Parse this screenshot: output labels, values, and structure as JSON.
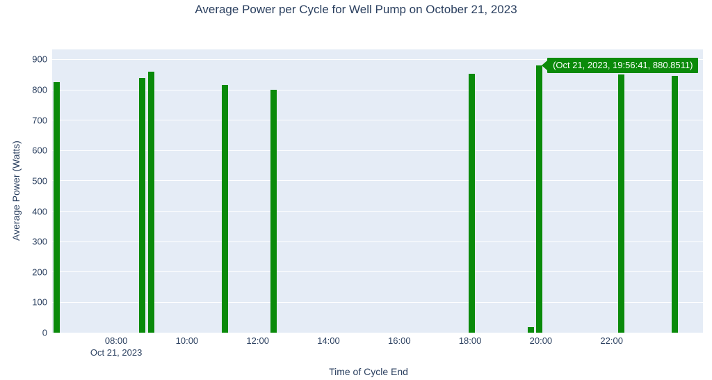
{
  "chart_data": {
    "type": "bar",
    "title": "Average Power per Cycle for Well Pump on October 21, 2023",
    "xlabel": "Time of Cycle End",
    "ylabel": "Average Power (Watts)",
    "x_secondary_label": "Oct 21, 2023",
    "legend": "none",
    "grid": "horizontal-only",
    "x_range_hours": [
      6.19,
      24.58
    ],
    "x_ticks": [
      {
        "hour": 8,
        "label": "08:00"
      },
      {
        "hour": 10,
        "label": "10:00"
      },
      {
        "hour": 12,
        "label": "12:00"
      },
      {
        "hour": 14,
        "label": "14:00"
      },
      {
        "hour": 16,
        "label": "16:00"
      },
      {
        "hour": 18,
        "label": "18:00"
      },
      {
        "hour": 20,
        "label": "20:00"
      },
      {
        "hour": 22,
        "label": "22:00"
      }
    ],
    "ylim": [
      0,
      933
    ],
    "y_ticks": [
      0,
      100,
      200,
      300,
      400,
      500,
      600,
      700,
      800,
      900
    ],
    "series": [
      {
        "name": "Average Power per Cycle",
        "points": [
          {
            "time": "06:19",
            "hour": 6.32,
            "watts": 826
          },
          {
            "time": "08:44",
            "hour": 8.737,
            "watts": 840
          },
          {
            "time": "09:00",
            "hour": 8.992,
            "watts": 860
          },
          {
            "time": "11:04",
            "hour": 11.065,
            "watts": 817
          },
          {
            "time": "12:26",
            "hour": 12.438,
            "watts": 799
          },
          {
            "time": "18:03",
            "hour": 18.05,
            "watts": 853
          },
          {
            "time": "19:44",
            "hour": 19.725,
            "watts": 18
          },
          {
            "time": "19:56:41",
            "hour": 19.9447,
            "watts": 880.8511
          },
          {
            "time": "22:17",
            "hour": 22.28,
            "watts": 850
          },
          {
            "time": "23:47",
            "hour": 23.79,
            "watts": 846
          }
        ]
      }
    ],
    "tooltip": {
      "text": "(Oct 21, 2023, 19:56:41, 880.8511)",
      "point_index": 7
    },
    "colors": {
      "bar": "#0a8a0a",
      "plot_bg": "#e5ecf6",
      "grid": "#ffffff",
      "text": "#2a3f5f",
      "tooltip_bg": "#0a8a0a",
      "tooltip_text": "#ffffff"
    }
  }
}
